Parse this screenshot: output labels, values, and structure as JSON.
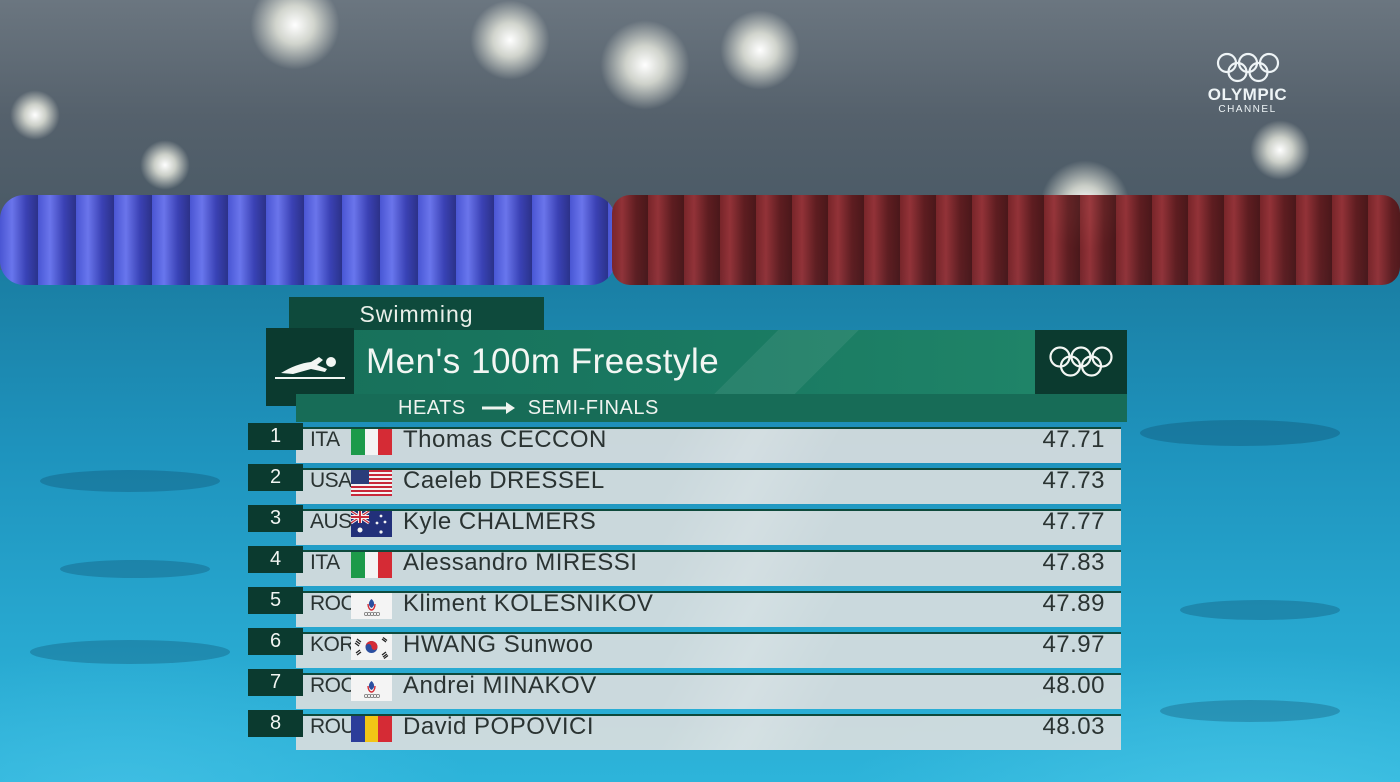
{
  "broadcaster": {
    "line1": "OLYMPIC",
    "line2": "CHANNEL",
    "icon": "olympic-rings-icon"
  },
  "graphic": {
    "sport": "Swimming",
    "event": "Men's 100m Freestyle",
    "phase_from": "HEATS",
    "phase_to": "SEMI-FINALS",
    "sport_icon": "swimmer-icon",
    "rings_icon": "olympic-rings-icon",
    "colors": {
      "dark_green": "#0b3a2f",
      "green": "#1a7a62",
      "row_bg": "#d7ddde"
    }
  },
  "results": [
    {
      "rank": "1",
      "noc": "ITA",
      "flag": "italy",
      "name": "Thomas CECCON",
      "time": "47.71"
    },
    {
      "rank": "2",
      "noc": "USA",
      "flag": "usa",
      "name": "Caeleb DRESSEL",
      "time": "47.73"
    },
    {
      "rank": "3",
      "noc": "AUS",
      "flag": "australia",
      "name": "Kyle CHALMERS",
      "time": "47.77"
    },
    {
      "rank": "4",
      "noc": "ITA",
      "flag": "italy",
      "name": "Alessandro MIRESSI",
      "time": "47.83"
    },
    {
      "rank": "5",
      "noc": "ROC",
      "flag": "roc",
      "name": "Kliment KOLESNIKOV",
      "time": "47.89"
    },
    {
      "rank": "6",
      "noc": "KOR",
      "flag": "korea",
      "name": "HWANG Sunwoo",
      "time": "47.97"
    },
    {
      "rank": "7",
      "noc": "ROC",
      "flag": "roc",
      "name": "Andrei MINAKOV",
      "time": "48.00"
    },
    {
      "rank": "8",
      "noc": "ROU",
      "flag": "romania",
      "name": "David POPOVICI",
      "time": "48.03"
    }
  ]
}
